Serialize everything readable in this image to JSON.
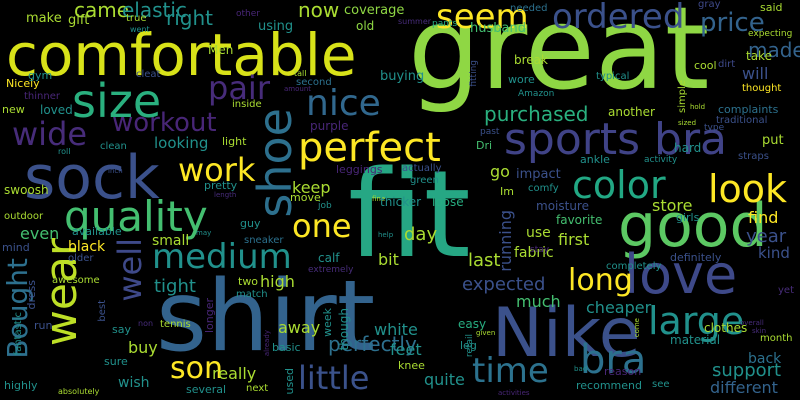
{
  "colors": {
    "background": "#000000",
    "palette": [
      "#440154",
      "#472c7a",
      "#3b518b",
      "#2c718e",
      "#21908d",
      "#27ad81",
      "#5cc863",
      "#aadc32",
      "#fde725"
    ]
  },
  "words": {
    "great": "great",
    "fit": "fit",
    "shirt": "shirt",
    "comfortable": "comfortable",
    "nike": "Nike",
    "sock": "sock",
    "good": "good",
    "love": "love",
    "size": "size",
    "sports_bra": "sports bra",
    "shoe": "shoe",
    "quality": "quality",
    "perfect": "perfect",
    "wear": "wear",
    "color": "color",
    "look": "look",
    "bra": "bra",
    "large": "large",
    "medium": "medium",
    "nice": "nice",
    "seem": "seem",
    "pair": "pair",
    "ordered": "ordered",
    "wide": "wide",
    "work": "work",
    "one": "one",
    "well": "well",
    "time": "time",
    "little": "little",
    "son": "son",
    "long": "long",
    "workout": "workout",
    "bought": "Bought",
    "price": "price",
    "made": "made",
    "came": "came",
    "elastic": "elastic",
    "right": "right",
    "now": "now",
    "purchased": "purchased",
    "perfectly": "perfectly",
    "tight": "tight",
    "expected": "expected",
    "last": "last",
    "day": "day",
    "first": "first",
    "year": "year",
    "find": "find",
    "store": "store",
    "keep": "keep",
    "even": "even",
    "running": "running",
    "support": "support",
    "different": "different",
    "really": "really",
    "quite": "quite",
    "cheaper": "cheaper",
    "much": "much",
    "buy": "buy",
    "white": "white",
    "feet": "feet",
    "high": "high",
    "away": "away",
    "bit": "bit",
    "looking": "looking",
    "will": "will",
    "kind": "kind",
    "go": "go",
    "use": "use",
    "black": "black",
    "small": "small",
    "fabric": "fabric",
    "back": "back",
    "wish": "wish",
    "coverage": "coverage",
    "make": "make",
    "gift": "gift",
    "true": "true",
    "other": "other",
    "old": "old",
    "husband": "husband",
    "needed": "needed",
    "said": "said",
    "gray": "gray",
    "pants": "pants",
    "summer": "summer",
    "using": "using",
    "men": "Men",
    "take": "take",
    "cool": "cool",
    "dirt": "dirt",
    "expecting": "expecting",
    "break": "break",
    "nicely": "Nicely",
    "cleat": "cleat",
    "tall": "tall",
    "second": "second",
    "buying": "buying",
    "wore": "wore",
    "amazon": "Amazon",
    "typical": "typical",
    "thought": "thought",
    "gym": "gym",
    "thinner": "thinner",
    "amount": "amount",
    "new": "new",
    "loved": "loved",
    "inside": "inside",
    "simple": "simple",
    "another": "another",
    "complaints": "complaints",
    "traditional": "traditional",
    "roll": "roll",
    "clean": "clean",
    "light": "light",
    "purple": "purple",
    "dri": "Dri",
    "past": "past",
    "hard": "hard",
    "put": "put",
    "type": "type",
    "activity": "activity",
    "straps": "straps",
    "swoosh": "swoosh",
    "inch": "inch",
    "pretty": "pretty",
    "leggings": "leggings",
    "actually": "actually",
    "impact": "impact",
    "comfy": "comfy",
    "ankle": "ankle",
    "im": "Im",
    "move": "move",
    "green": "green",
    "outdoor": "outdoor",
    "length": "length",
    "guy": "guy",
    "job": "job",
    "fine": "fine",
    "thicker": "thicker",
    "loose": "loose",
    "moisture": "moisture",
    "favorite": "favorite",
    "girls": "girls",
    "available": "available",
    "mind": "mind",
    "sneaker": "sneaker",
    "calf": "calf",
    "extremely": "extremely",
    "help": "help",
    "stay": "stay",
    "definitely": "definitely",
    "completely": "completely",
    "older": "older",
    "awesome": "awesome",
    "dress": "dress",
    "two": "two",
    "longer": "longer",
    "match": "match",
    "fantastic": "fantastic",
    "best": "best",
    "run": "run",
    "sure": "sure",
    "say": "say",
    "non": "non",
    "tennis": "tennis",
    "basic": "basic",
    "already": "already",
    "week": "week",
    "though": "though",
    "easy": "easy",
    "given": "given",
    "leg": "leg",
    "retail": "retail",
    "overall": "overall",
    "come": "come",
    "material": "material",
    "skin": "skin",
    "yet": "yet",
    "month": "month",
    "clothes": "clothes",
    "highly": "highly",
    "absolutely": "absolutely",
    "several": "several",
    "next": "next",
    "used": "used",
    "knee": "knee",
    "recommend": "recommend",
    "see": "see",
    "bad": "bad",
    "reason": "reason",
    "activities": "activities",
    "may": "may",
    "went": "went",
    "sized": "sized",
    "fitting": "fitting",
    "hold": "hold"
  }
}
